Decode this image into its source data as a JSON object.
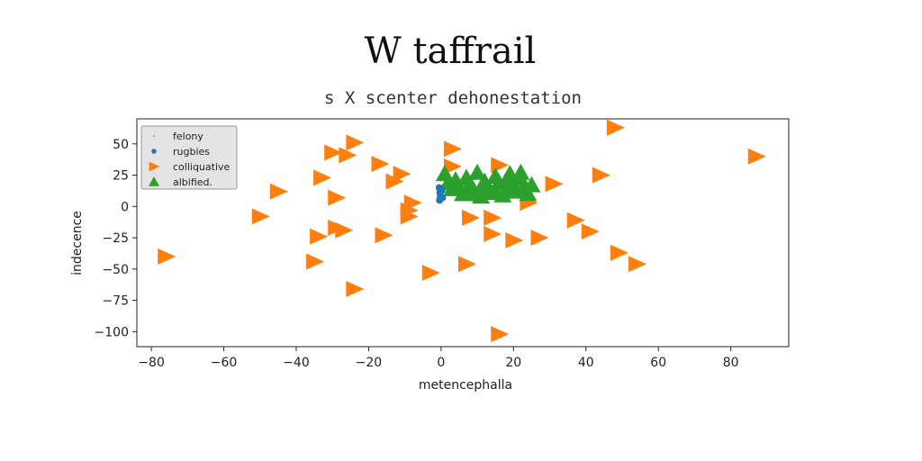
{
  "chart_data": {
    "type": "scatter",
    "title": "W taffrail",
    "subtitle": "s X scenter dehonestation",
    "xlabel": "metencephalla",
    "ylabel": "indecence",
    "xlim": [
      -84,
      96
    ],
    "ylim": [
      -112,
      70
    ],
    "xticks": [
      "−80",
      "−60",
      "−40",
      "−20",
      "0",
      "20",
      "40",
      "60",
      "80"
    ],
    "xtick_values": [
      -80,
      -60,
      -40,
      -20,
      0,
      20,
      40,
      60,
      80
    ],
    "yticks": [
      "50",
      "25",
      "0",
      "−25",
      "−50",
      "−75",
      "−100"
    ],
    "ytick_values": [
      50,
      25,
      0,
      -25,
      -50,
      -75,
      -100
    ],
    "grid": false,
    "legend_placement": "top-left",
    "series": [
      {
        "name": "felony",
        "marker": "dot",
        "color": "#555555",
        "points": []
      },
      {
        "name": "rugbies",
        "marker": "circle",
        "color": "#1f77b4",
        "points": [
          [
            -0.5,
            15
          ],
          [
            -0.3,
            11
          ],
          [
            -0.2,
            8
          ],
          [
            -0.4,
            5
          ],
          [
            0.2,
            13
          ],
          [
            0.4,
            7
          ]
        ]
      },
      {
        "name": "colliquative",
        "marker": "triangle-right",
        "color": "#ff7f0e",
        "points": [
          [
            48,
            63
          ],
          [
            87,
            40
          ],
          [
            -24,
            51
          ],
          [
            -30,
            43
          ],
          [
            -26,
            41
          ],
          [
            3,
            46
          ],
          [
            -17,
            34
          ],
          [
            -33,
            23
          ],
          [
            -13,
            20
          ],
          [
            -11,
            26
          ],
          [
            -29,
            7
          ],
          [
            -45,
            12
          ],
          [
            -8,
            3
          ],
          [
            -9,
            -3
          ],
          [
            -9,
            -8
          ],
          [
            -50,
            -8
          ],
          [
            -27,
            -19
          ],
          [
            -29,
            -17
          ],
          [
            -34,
            -24
          ],
          [
            -16,
            -23
          ],
          [
            -35,
            -44
          ],
          [
            -76,
            -40
          ],
          [
            -24,
            -66
          ],
          [
            -3,
            -53
          ],
          [
            7,
            -46
          ],
          [
            8,
            -9
          ],
          [
            14,
            -9
          ],
          [
            14,
            -22
          ],
          [
            20,
            -27
          ],
          [
            27,
            -25
          ],
          [
            16,
            33
          ],
          [
            24,
            3
          ],
          [
            31,
            18
          ],
          [
            37,
            -11
          ],
          [
            41,
            -20
          ],
          [
            44,
            25
          ],
          [
            49,
            -37
          ],
          [
            54,
            -46
          ],
          [
            16,
            -102
          ],
          [
            3,
            32
          ]
        ]
      },
      {
        "name": "albified.",
        "marker": "triangle-up",
        "color": "#2ca02c",
        "points": [
          [
            1,
            26
          ],
          [
            2,
            19
          ],
          [
            3,
            14
          ],
          [
            4,
            21
          ],
          [
            5,
            16
          ],
          [
            6,
            10
          ],
          [
            7,
            23
          ],
          [
            8,
            18
          ],
          [
            9,
            13
          ],
          [
            10,
            27
          ],
          [
            11,
            8
          ],
          [
            12,
            20
          ],
          [
            13,
            15
          ],
          [
            14,
            11
          ],
          [
            15,
            24
          ],
          [
            16,
            19
          ],
          [
            17,
            9
          ],
          [
            18,
            14
          ],
          [
            19,
            26
          ],
          [
            20,
            17
          ],
          [
            21,
            12
          ],
          [
            22,
            22
          ],
          [
            23,
            15
          ],
          [
            24,
            10
          ],
          [
            25,
            17
          ],
          [
            9,
            12
          ],
          [
            12,
            16
          ],
          [
            7,
            10
          ],
          [
            15,
            12
          ],
          [
            20,
            13
          ],
          [
            22,
            27
          ],
          [
            18,
            21
          ]
        ]
      }
    ]
  }
}
